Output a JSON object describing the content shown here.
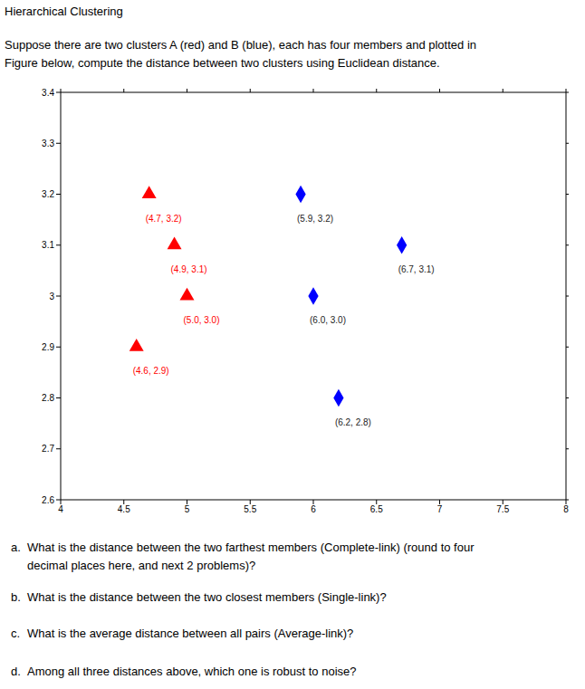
{
  "header": {
    "title": "Hierarchical Clustering"
  },
  "intro": {
    "lines": [
      "Suppose there are two clusters A (red) and B (blue), each has four members and plotted in",
      "Figure below, compute the distance between two clusters using Euclidean distance."
    ]
  },
  "chart_data": {
    "type": "scatter",
    "xlim": [
      4,
      8
    ],
    "xticks": [
      4,
      4.5,
      5,
      5.5,
      6,
      6.5,
      7,
      7.5,
      8
    ],
    "ylim": [
      2.6,
      3.4
    ],
    "yticks": [
      2.6,
      2.7,
      2.8,
      2.9,
      3,
      3.1,
      3.2,
      3.3,
      3.4
    ],
    "grid": false,
    "series": [
      {
        "name": "A",
        "color": "#ff0000",
        "marker": "triangle",
        "x": [
          4.7,
          4.9,
          5.0,
          4.6
        ],
        "values": [
          3.2,
          3.1,
          3.0,
          2.9
        ],
        "annotations": [
          "(4.7, 3.2)",
          "(4.9, 3.1)",
          "(5.0, 3.0)",
          "(4.6, 2.9)"
        ]
      },
      {
        "name": "B",
        "color": "#0000ff",
        "marker": "diamond",
        "x": [
          5.9,
          6.7,
          6.0,
          6.2
        ],
        "values": [
          3.2,
          3.1,
          3.0,
          2.8
        ],
        "annotations": [
          "(5.9, 3.2)",
          "(6.7, 3.1)",
          "(6.0, 3.0)",
          "(6.2, 2.8)"
        ]
      }
    ]
  },
  "questions": [
    {
      "label": "a.",
      "lines": [
        "What is the distance between the two farthest members (Complete-link) (round to four",
        "decimal places here, and next 2 problems)?"
      ]
    },
    {
      "label": "b.",
      "lines": [
        "What is the distance between the two closest members (Single-link)?"
      ]
    },
    {
      "label": "c.",
      "lines": [
        "What is the average distance between all pairs (Average-link)?"
      ]
    },
    {
      "label": "d.",
      "lines": [
        "Among all three distances above, which one is robust to noise?"
      ]
    }
  ]
}
